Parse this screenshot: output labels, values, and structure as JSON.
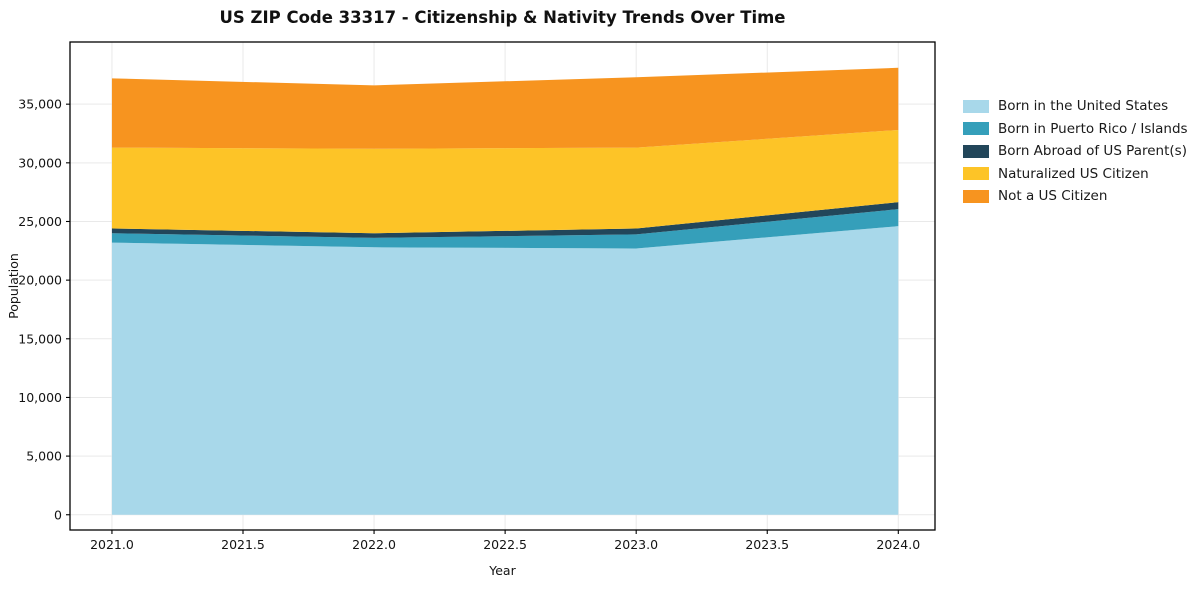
{
  "page": {
    "background": "#ffffff"
  },
  "chart_data": {
    "type": "area",
    "stacked": true,
    "title": "US ZIP Code 33317 - Citizenship & Nativity Trends Over Time",
    "xlabel": "Year",
    "ylabel": "Population",
    "x": [
      2021,
      2022,
      2023,
      2024
    ],
    "series": [
      {
        "name": "Born in the United States",
        "color": "#a8d8ea",
        "values": [
          23200,
          22800,
          22700,
          24600
        ]
      },
      {
        "name": "Born in Puerto Rico / Islands",
        "color": "#359fba",
        "values": [
          800,
          800,
          1200,
          1450
        ]
      },
      {
        "name": "Born Abroad of US Parent(s)",
        "color": "#22465a",
        "values": [
          400,
          400,
          500,
          600
        ]
      },
      {
        "name": "Naturalized US Citizen",
        "color": "#fdc427",
        "values": [
          6900,
          7200,
          6900,
          6150
        ]
      },
      {
        "name": "Not a US Citizen",
        "color": "#f7941f",
        "values": [
          5900,
          5400,
          6000,
          5300
        ]
      }
    ],
    "stack_totals": [
      37200,
      36600,
      37300,
      38100
    ],
    "xlim": [
      2020.84,
      2024.14
    ],
    "ylim": [
      -1300,
      40300
    ],
    "xticks": [
      2021.0,
      2021.5,
      2022.0,
      2022.5,
      2023.0,
      2023.5,
      2024.0
    ],
    "yticks": [
      0,
      5000,
      10000,
      15000,
      20000,
      25000,
      30000,
      35000
    ],
    "grid": true,
    "legend_position": "right-outside",
    "axis_color": "#000000",
    "grid_color": "#e9e9e9",
    "text_color": "#141414"
  }
}
